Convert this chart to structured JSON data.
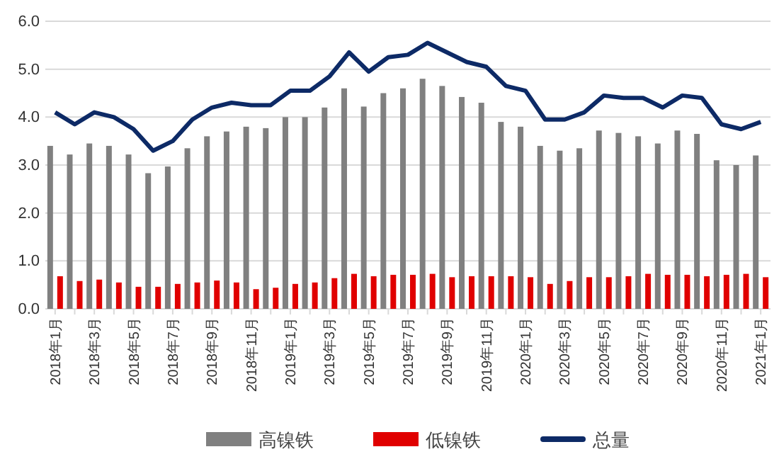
{
  "chart_data": {
    "type": "bar",
    "categories": [
      "2018年1月",
      null,
      "2018年3月",
      null,
      "2018年5月",
      null,
      "2018年7月",
      null,
      "2018年9月",
      null,
      "2018年11月",
      null,
      "2019年1月",
      null,
      "2019年3月",
      null,
      "2019年5月",
      null,
      "2019年7月",
      null,
      "2019年9月",
      null,
      "2019年11月",
      null,
      "2020年1月",
      null,
      "2020年3月",
      null,
      "2020年5月",
      null,
      "2020年7月",
      null,
      "2020年9月",
      null,
      "2020年11月",
      null,
      "2021年1月"
    ],
    "series": [
      {
        "name": "高镍铁",
        "color": "#808080",
        "values": [
          3.4,
          3.22,
          3.45,
          3.4,
          3.22,
          2.83,
          2.97,
          3.35,
          3.6,
          3.7,
          3.8,
          3.77,
          4.0,
          4.0,
          4.2,
          4.6,
          4.22,
          4.5,
          4.6,
          4.8,
          4.65,
          4.42,
          4.3,
          3.9,
          3.8,
          3.4,
          3.3,
          3.35,
          3.72,
          3.67,
          3.6,
          3.45,
          3.72,
          3.65,
          3.1,
          3.0,
          3.2
        ]
      },
      {
        "name": "低镍铁",
        "color": "#e00000",
        "values": [
          0.68,
          0.58,
          0.61,
          0.55,
          0.46,
          0.46,
          0.52,
          0.55,
          0.59,
          0.55,
          0.41,
          0.44,
          0.52,
          0.55,
          0.64,
          0.73,
          0.68,
          0.71,
          0.71,
          0.73,
          0.66,
          0.68,
          0.68,
          0.68,
          0.66,
          0.52,
          0.58,
          0.66,
          0.66,
          0.68,
          0.73,
          0.71,
          0.71,
          0.68,
          0.71,
          0.73,
          0.66
        ]
      },
      {
        "name": "总量",
        "type": "line",
        "color": "#0d2a66",
        "values": [
          4.1,
          3.85,
          4.1,
          4.0,
          3.75,
          3.3,
          3.5,
          3.95,
          4.2,
          4.3,
          4.25,
          4.25,
          4.55,
          4.55,
          4.85,
          5.35,
          4.95,
          5.25,
          5.3,
          5.55,
          5.35,
          5.15,
          5.05,
          4.65,
          4.55,
          3.95,
          3.95,
          4.1,
          4.45,
          4.4,
          4.4,
          4.2,
          4.45,
          4.4,
          3.85,
          3.75,
          3.9
        ]
      }
    ],
    "ylim": [
      0,
      6
    ],
    "yticks": [
      {
        "value": 0,
        "label": "0.0"
      },
      {
        "value": 1,
        "label": "1.0"
      },
      {
        "value": 2,
        "label": "2.0"
      },
      {
        "value": 3,
        "label": "3.0"
      },
      {
        "value": 4,
        "label": "4.0"
      },
      {
        "value": 5,
        "label": "5.0"
      },
      {
        "value": 6,
        "label": "6.0"
      }
    ],
    "grid": "y",
    "legend": "bottom",
    "marker": "none",
    "line_style": "solid"
  }
}
